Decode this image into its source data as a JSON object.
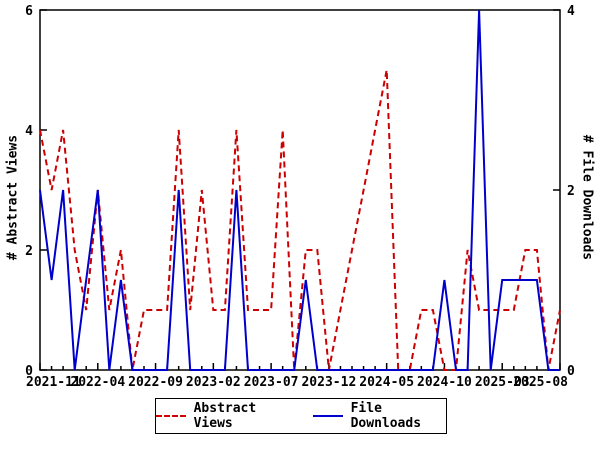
{
  "axes": {
    "left_title": "# Abstract Views",
    "right_title": "# File Downloads",
    "left_ticks": [
      0,
      2,
      4,
      6
    ],
    "right_ticks": [
      0,
      2,
      4
    ],
    "x_tick_labels": [
      "2021-11",
      "2022-04",
      "2022-09",
      "2023-02",
      "2023-07",
      "2023-12",
      "2024-05",
      "2024-10",
      "2025-03",
      "2025-08"
    ]
  },
  "legend": {
    "abstract_views_label": "Abstract Views",
    "file_downloads_label": "File Downloads"
  },
  "colors": {
    "abstract_views": "#cc0000",
    "file_downloads": "#0000cc",
    "axis": "#000000"
  },
  "chart_data": {
    "type": "line",
    "title": "",
    "x": [
      "2021-11",
      "2021-12",
      "2022-01",
      "2022-02",
      "2022-03",
      "2022-04",
      "2022-05",
      "2022-06",
      "2022-07",
      "2022-08",
      "2022-09",
      "2022-10",
      "2022-11",
      "2022-12",
      "2023-01",
      "2023-02",
      "2023-03",
      "2023-04",
      "2023-05",
      "2023-06",
      "2023-07",
      "2023-08",
      "2023-09",
      "2023-10",
      "2023-11",
      "2023-12",
      "2024-01",
      "2024-02",
      "2024-03",
      "2024-04",
      "2024-05",
      "2024-06",
      "2024-07",
      "2024-08",
      "2024-09",
      "2024-10",
      "2024-11",
      "2024-12",
      "2025-01",
      "2025-02",
      "2025-03",
      "2025-04",
      "2025-05",
      "2025-06",
      "2025-07",
      "2025-08"
    ],
    "series": [
      {
        "name": "Abstract Views",
        "axis": "left",
        "style": "dashed",
        "values": [
          4,
          3,
          4,
          2,
          1,
          3,
          1,
          2,
          0,
          1,
          1,
          1,
          4,
          1,
          3,
          1,
          1,
          4,
          1,
          1,
          1,
          4,
          0,
          2,
          2,
          0,
          1,
          2,
          3,
          4,
          5,
          0,
          0,
          1,
          1,
          0,
          0,
          2,
          1,
          1,
          1,
          1,
          2,
          2,
          0,
          1
        ]
      },
      {
        "name": "File Downloads",
        "axis": "right",
        "style": "solid",
        "values": [
          2,
          1,
          2,
          0,
          1,
          2,
          0,
          1,
          0,
          0,
          0,
          0,
          2,
          0,
          0,
          0,
          0,
          2,
          0,
          0,
          0,
          0,
          0,
          1,
          0,
          0,
          0,
          0,
          0,
          0,
          0,
          0,
          0,
          0,
          0,
          1,
          0,
          0,
          4,
          0,
          1,
          1,
          1,
          1,
          0,
          0
        ]
      }
    ],
    "ylabel_left": "# Abstract Views",
    "ylabel_right": "# File Downloads",
    "ylim_left": [
      0,
      6
    ],
    "ylim_right": [
      0,
      4
    ],
    "grid": false,
    "legend_position": "bottom-center"
  }
}
